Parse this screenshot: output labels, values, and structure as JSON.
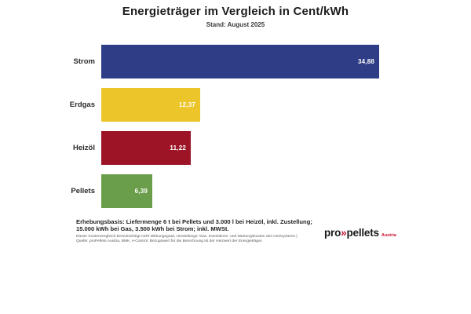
{
  "header": {
    "title": "Energieträger im Vergleich in Cent/kWh",
    "subtitle": "Stand: August 2025"
  },
  "chart_data": {
    "type": "bar",
    "orientation": "horizontal",
    "title": "Energieträger im Vergleich in Cent/kWh",
    "subtitle": "Stand: August 2025",
    "categories": [
      "Strom",
      "Erdgas",
      "Heizöl",
      "Pellets"
    ],
    "values": [
      34.88,
      12.37,
      11.22,
      6.39
    ],
    "value_labels": [
      "34,88",
      "12,37",
      "11,22",
      "6,39"
    ],
    "colors": [
      "#2e3d85",
      "#ecc52a",
      "#9c1426",
      "#6b9e4b"
    ],
    "unit": "Cent/kWh",
    "xlim": [
      0,
      34.88
    ],
    "grid": false,
    "legend": "none",
    "value_label_position": "inside-end"
  },
  "footer": {
    "basis_line1": "Erhebungsbasis: Liefermenge 6 t bei Pellets und 3.000 l bei Heizöl, inkl. Zustellung;",
    "basis_line2": "15.000 kWh bei Gas, 3.500 kWh bei Strom; inkl. MWSt.",
    "fine_print_line1": "Dieser Kostenvergleich berücksichtigt nicht Wirkungsgrad, Umstellungs- bzw. Investitions- und Wartungskosten des Heizsystems |",
    "fine_print_line2": "Quelle: proPellets Austria, BMK, e-Control. Bezugswert für die Berechnung ist der Heizwert der Energieträger."
  },
  "logo": {
    "pro": "pro",
    "chevrons": "»",
    "pellets": "pellets",
    "country": "Austria",
    "accent_color": "#c8102e"
  }
}
